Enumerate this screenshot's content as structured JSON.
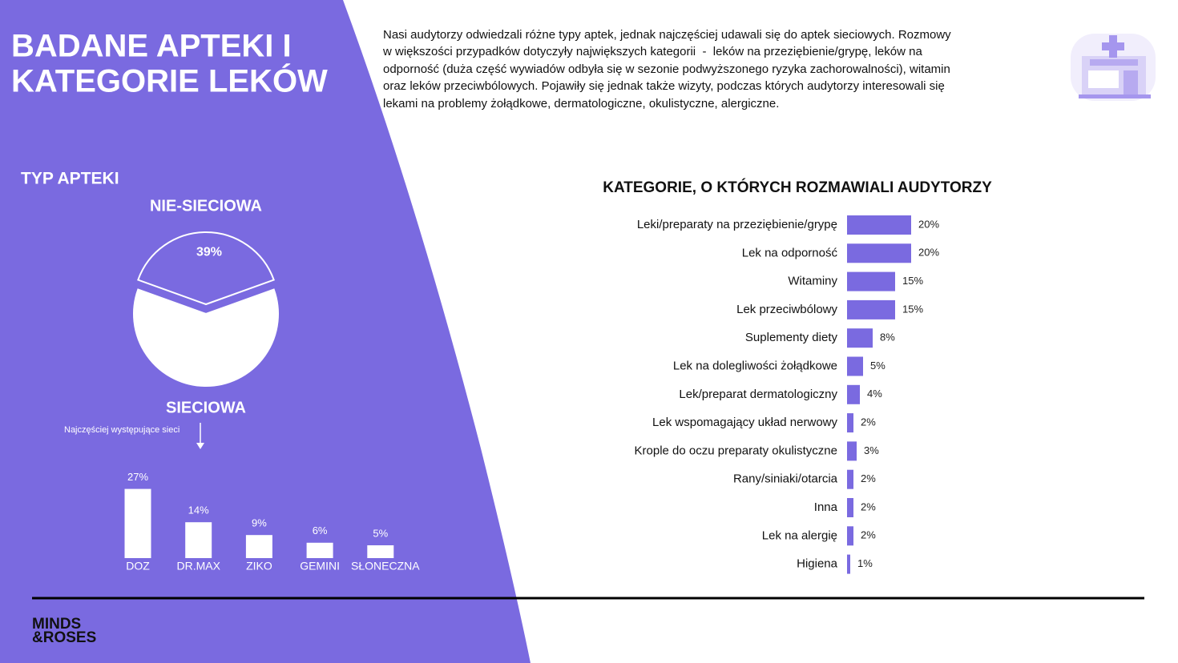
{
  "header": {
    "title_lines": [
      "BADANE APTEKI I",
      "KATEGORIE LEKÓW"
    ],
    "intro_lines": [
      "Nasi audytorzy odwiedzali różne typy aptek, jednak najczęściej udawali się do aptek sieciowych. Rozmowy",
      "w większości przypadków dotyczyły największych kategorii  -  leków na przeziębienie/grypę, leków na",
      "odporność (duża część wywiadów odbyła się w sezonie podwyższonego ryzyka zachorowalności), witamin",
      "oraz leków przeciwbólowych. Pojawiły się jednak także wizyty, podczas których audytorzy interesowali się",
      "lekami na problemy żołądkowe, dermatologiczne, okulistyczne, alergiczne."
    ]
  },
  "chart_data": [
    {
      "type": "pie",
      "title": "TYP APTEKI",
      "categories": [
        "NIE-SIECIOWA",
        "SIECIOWA"
      ],
      "values": [
        39,
        61
      ],
      "value_labels": [
        "39%",
        null
      ],
      "colors": [
        "#7a6ae0",
        "#ffffff"
      ],
      "stroke": "#ffffff"
    },
    {
      "type": "bar",
      "orientation": "vertical",
      "annotation": "Najczęściej występujące sieci",
      "categories": [
        "DOZ",
        "DR.MAX",
        "ZIKO",
        "GEMINI",
        "SŁONECZNA"
      ],
      "values": [
        27,
        14,
        9,
        6,
        5
      ],
      "value_labels": [
        "27%",
        "14%",
        "9%",
        "6%",
        "5%"
      ],
      "color": "#ffffff"
    },
    {
      "type": "bar",
      "orientation": "horizontal",
      "title": "KATEGORIE, O KTÓRYCH ROZMAWIALI AUDYTORZY",
      "categories": [
        "Leki/preparaty na przeziębienie/grypę",
        "Lek na odporność",
        "Witaminy",
        "Lek przeciwbólowy",
        "Suplementy diety",
        "Lek na dolegliwości żołądkowe",
        "Lek/preparat dermatologiczny",
        "Lek wspomagający układ nerwowy",
        "Krople do oczu preparaty okulistyczne",
        "Rany/siniaki/otarcia",
        "Inna",
        "Lek na alergię",
        "Higiena"
      ],
      "values": [
        20,
        20,
        15,
        15,
        8,
        5,
        4,
        2,
        3,
        2,
        2,
        2,
        1
      ],
      "value_labels": [
        "20%",
        "20%",
        "15%",
        "15%",
        "8%",
        "5%",
        "4%",
        "2%",
        "3%",
        "2%",
        "2%",
        "2%",
        "1%"
      ],
      "color": "#7a6ae0"
    }
  ],
  "footer": {
    "logo_lines": [
      "MINDS",
      "&ROSES"
    ]
  }
}
